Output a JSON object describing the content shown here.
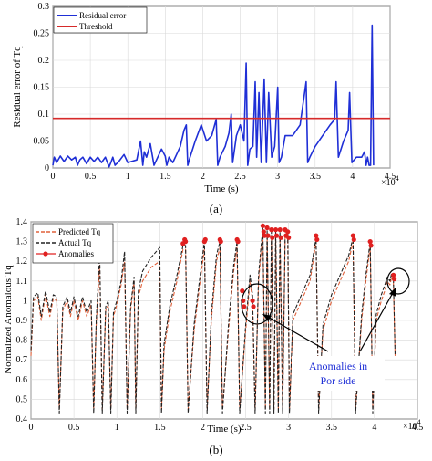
{
  "chart_data": [
    {
      "type": "line",
      "panel_label": "(a)",
      "xlabel": "Time (s)",
      "ylabel": "Residual error of Tq",
      "x_exponent": "×10",
      "x_exponent_power": "4",
      "xlim": [
        0,
        4.5
      ],
      "ylim": [
        0,
        0.3
      ],
      "x_ticks": [
        "0",
        "0.5",
        "1",
        "1.5",
        "2",
        "2.5",
        "3",
        "3.5",
        "4",
        "4.5"
      ],
      "y_ticks": [
        "0",
        "0.05",
        "0.1",
        "0.15",
        "0.2",
        "0.25",
        "0.3"
      ],
      "grid": true,
      "legend_position": "top-left",
      "series": [
        {
          "name": "Residual error",
          "color": "#1f2fd6",
          "x": [
            0.0,
            0.02,
            0.05,
            0.1,
            0.15,
            0.2,
            0.25,
            0.3,
            0.33,
            0.36,
            0.4,
            0.45,
            0.5,
            0.55,
            0.6,
            0.65,
            0.7,
            0.75,
            0.78,
            0.8,
            0.83,
            0.88,
            0.95,
            1.0,
            1.05,
            1.12,
            1.17,
            1.2,
            1.22,
            1.25,
            1.3,
            1.35,
            1.4,
            1.45,
            1.5,
            1.52,
            1.55,
            1.6,
            1.65,
            1.7,
            1.75,
            1.78,
            1.8,
            1.83,
            1.9,
            1.98,
            2.05,
            2.12,
            2.18,
            2.2,
            2.23,
            2.3,
            2.35,
            2.38,
            2.4,
            2.45,
            2.5,
            2.55,
            2.58,
            2.6,
            2.63,
            2.67,
            2.7,
            2.72,
            2.75,
            2.78,
            2.82,
            2.85,
            2.88,
            2.92,
            2.96,
            3.0,
            3.02,
            3.05,
            3.1,
            3.2,
            3.3,
            3.38,
            3.4,
            3.43,
            3.5,
            3.6,
            3.7,
            3.76,
            3.78,
            3.81,
            3.88,
            3.94,
            3.96,
            3.99,
            4.05,
            4.12,
            4.16,
            4.18,
            4.2,
            4.22,
            4.24,
            4.26,
            4.28
          ],
          "y": [
            0.005,
            0.02,
            0.01,
            0.022,
            0.012,
            0.022,
            0.015,
            0.02,
            0.005,
            0.015,
            0.02,
            0.008,
            0.02,
            0.012,
            0.02,
            0.01,
            0.02,
            0.002,
            0.012,
            0.02,
            0.005,
            0.012,
            0.025,
            0.01,
            0.012,
            0.015,
            0.05,
            0.005,
            0.03,
            0.02,
            0.045,
            0.005,
            0.02,
            0.035,
            0.022,
            0.005,
            0.02,
            0.01,
            0.025,
            0.04,
            0.07,
            0.08,
            0.005,
            0.02,
            0.05,
            0.08,
            0.05,
            0.06,
            0.09,
            0.005,
            0.02,
            0.04,
            0.065,
            0.1,
            0.01,
            0.06,
            0.08,
            0.05,
            0.195,
            0.005,
            0.035,
            0.04,
            0.16,
            0.02,
            0.14,
            0.01,
            0.165,
            0.01,
            0.14,
            0.02,
            0.04,
            0.15,
            0.01,
            0.02,
            0.06,
            0.06,
            0.08,
            0.16,
            0.01,
            0.02,
            0.04,
            0.06,
            0.08,
            0.09,
            0.16,
            0.02,
            0.05,
            0.07,
            0.14,
            0.01,
            0.02,
            0.02,
            0.03,
            0.005,
            0.02,
            0.005,
            0.005,
            0.265,
            0.005
          ]
        },
        {
          "name": "Threshold",
          "color": "#d62a2a",
          "x": [
            0,
            4.5
          ],
          "y": [
            0.092,
            0.092
          ]
        }
      ]
    },
    {
      "type": "line",
      "panel_label": "(b)",
      "xlabel": "Time (s)",
      "ylabel": "Normalized Anomalous Tq",
      "x_exponent": "×10",
      "x_exponent_power": "4",
      "xlim": [
        0,
        4.5
      ],
      "ylim": [
        0.4,
        1.4
      ],
      "x_ticks": [
        "0",
        "0.5",
        "1",
        "1.5",
        "2",
        "2.5",
        "3",
        "3.5",
        "4",
        "4.5"
      ],
      "y_ticks": [
        "0.4",
        "0.5",
        "0.6",
        "0.7",
        "0.8",
        "0.9",
        "1",
        "1.1",
        "1.2",
        "1.3",
        "1.4"
      ],
      "grid": true,
      "legend_position": "top-left",
      "annotation": [
        "Anomalies in",
        "Por side"
      ],
      "series": [
        {
          "name": "Predicted Tq",
          "color": "#e0603a",
          "x": [
            0.0,
            0.03,
            0.08,
            0.12,
            0.17,
            0.22,
            0.26,
            0.3,
            0.33,
            0.37,
            0.42,
            0.46,
            0.5,
            0.55,
            0.6,
            0.65,
            0.7,
            0.73,
            0.76,
            0.8,
            0.83,
            0.87,
            0.9,
            0.93,
            0.96,
            1.0,
            1.05,
            1.09,
            1.12,
            1.16,
            1.2,
            1.22,
            1.25,
            1.3,
            1.4,
            1.5,
            1.52,
            1.55,
            1.62,
            1.7,
            1.77,
            1.8,
            1.83,
            1.9,
            1.97,
            2.02,
            2.05,
            2.1,
            2.16,
            2.2,
            2.23,
            2.3,
            2.36,
            2.4,
            2.43,
            2.5,
            2.55,
            2.58,
            2.61,
            2.65,
            2.68,
            2.7,
            2.73,
            2.75,
            2.78,
            2.8,
            2.83,
            2.85,
            2.88,
            2.9,
            2.93,
            2.96,
            2.99,
            3.01,
            3.05,
            3.15,
            3.25,
            3.32,
            3.35,
            3.4,
            3.5,
            3.6,
            3.7,
            3.75,
            3.78,
            3.85,
            3.9,
            3.95,
            3.98,
            4.02,
            4.08,
            4.12,
            4.15,
            4.18,
            4.2,
            4.22,
            4.24
          ],
          "y": [
            0.72,
            1.0,
            1.02,
            0.9,
            1.03,
            0.92,
            1.01,
            1.0,
            0.45,
            0.95,
            1.0,
            0.92,
            1.0,
            0.9,
            1.0,
            0.92,
            0.98,
            0.45,
            0.88,
            1.18,
            0.45,
            0.95,
            0.98,
            0.45,
            0.92,
            0.98,
            1.08,
            1.2,
            0.45,
            0.95,
            1.1,
            0.45,
            1.02,
            1.1,
            1.17,
            1.2,
            0.45,
            0.75,
            0.95,
            1.1,
            1.26,
            1.26,
            0.45,
            0.85,
            1.1,
            1.26,
            0.45,
            0.9,
            1.2,
            1.27,
            0.45,
            0.85,
            1.15,
            1.27,
            0.45,
            0.85,
            1.1,
            1.0,
            0.45,
            1.1,
            1.25,
            1.35,
            0.45,
            1.34,
            0.45,
            1.33,
            0.45,
            1.33,
            0.45,
            1.33,
            0.45,
            1.33,
            1.33,
            0.45,
            0.9,
            1.0,
            1.1,
            1.3,
            0.45,
            0.85,
            1.0,
            1.1,
            1.2,
            1.3,
            0.45,
            0.9,
            1.1,
            1.28,
            0.45,
            0.9,
            1.0,
            1.05,
            1.1,
            1.08,
            1.12,
            1.1,
            0.72
          ]
        },
        {
          "name": "Actual Tq",
          "color": "#222222",
          "x": [
            0.0,
            0.03,
            0.08,
            0.12,
            0.17,
            0.22,
            0.26,
            0.3,
            0.33,
            0.37,
            0.42,
            0.46,
            0.5,
            0.55,
            0.6,
            0.65,
            0.7,
            0.73,
            0.76,
            0.8,
            0.83,
            0.87,
            0.9,
            0.93,
            0.96,
            1.0,
            1.05,
            1.09,
            1.12,
            1.16,
            1.2,
            1.22,
            1.25,
            1.3,
            1.4,
            1.5,
            1.52,
            1.55,
            1.62,
            1.7,
            1.77,
            1.8,
            1.83,
            1.9,
            1.97,
            2.02,
            2.05,
            2.1,
            2.16,
            2.2,
            2.23,
            2.3,
            2.36,
            2.4,
            2.43,
            2.5,
            2.55,
            2.58,
            2.61,
            2.65,
            2.68,
            2.7,
            2.73,
            2.75,
            2.78,
            2.8,
            2.83,
            2.85,
            2.88,
            2.9,
            2.93,
            2.96,
            2.99,
            3.01,
            3.05,
            3.15,
            3.25,
            3.32,
            3.35,
            3.4,
            3.5,
            3.6,
            3.7,
            3.75,
            3.78,
            3.85,
            3.9,
            3.95,
            3.98,
            4.02,
            4.08,
            4.12,
            4.15,
            4.18,
            4.2,
            4.22,
            4.24
          ],
          "y": [
            0.75,
            1.02,
            1.04,
            0.92,
            1.05,
            0.94,
            1.03,
            1.02,
            0.43,
            0.97,
            1.02,
            0.94,
            1.02,
            0.92,
            1.02,
            0.94,
            1.0,
            0.43,
            0.9,
            1.24,
            0.43,
            0.97,
            1.0,
            0.43,
            0.94,
            1.0,
            1.1,
            1.25,
            0.43,
            0.97,
            1.12,
            0.43,
            1.05,
            1.15,
            1.22,
            1.27,
            0.43,
            0.78,
            0.98,
            1.13,
            1.28,
            1.28,
            0.43,
            0.88,
            1.13,
            1.3,
            0.43,
            0.93,
            1.23,
            1.3,
            0.43,
            0.88,
            1.18,
            1.3,
            0.43,
            0.88,
            1.13,
            1.03,
            0.43,
            1.13,
            1.28,
            1.37,
            0.43,
            1.36,
            0.43,
            1.35,
            0.43,
            1.35,
            0.43,
            1.35,
            0.43,
            1.35,
            1.35,
            0.43,
            0.93,
            1.03,
            1.13,
            1.32,
            0.43,
            0.88,
            1.03,
            1.13,
            1.23,
            1.32,
            0.43,
            0.93,
            1.13,
            1.3,
            0.43,
            0.93,
            1.03,
            1.08,
            1.12,
            1.1,
            1.14,
            1.12,
            0.72
          ]
        },
        {
          "name": "Anomalies",
          "color": "#e02020",
          "x": [
            1.77,
            1.79,
            1.8,
            2.02,
            2.03,
            2.2,
            2.21,
            2.4,
            2.41,
            2.46,
            2.47,
            2.48,
            2.58,
            2.59,
            2.7,
            2.71,
            2.72,
            2.75,
            2.76,
            2.8,
            2.81,
            2.85,
            2.86,
            2.9,
            2.91,
            2.96,
            2.97,
            2.99,
            3.0,
            3.32,
            3.33,
            3.75,
            3.76,
            3.95,
            3.96,
            4.22,
            4.23
          ],
          "y": [
            1.29,
            1.31,
            1.3,
            1.3,
            1.31,
            1.31,
            1.3,
            1.31,
            1.3,
            1.05,
            1.0,
            0.97,
            1.0,
            0.97,
            1.38,
            1.35,
            1.33,
            1.37,
            1.33,
            1.36,
            1.32,
            1.36,
            1.33,
            1.36,
            1.32,
            1.36,
            1.33,
            1.35,
            1.32,
            1.33,
            1.31,
            1.33,
            1.31,
            1.3,
            1.28,
            1.13,
            1.11
          ]
        }
      ]
    }
  ]
}
